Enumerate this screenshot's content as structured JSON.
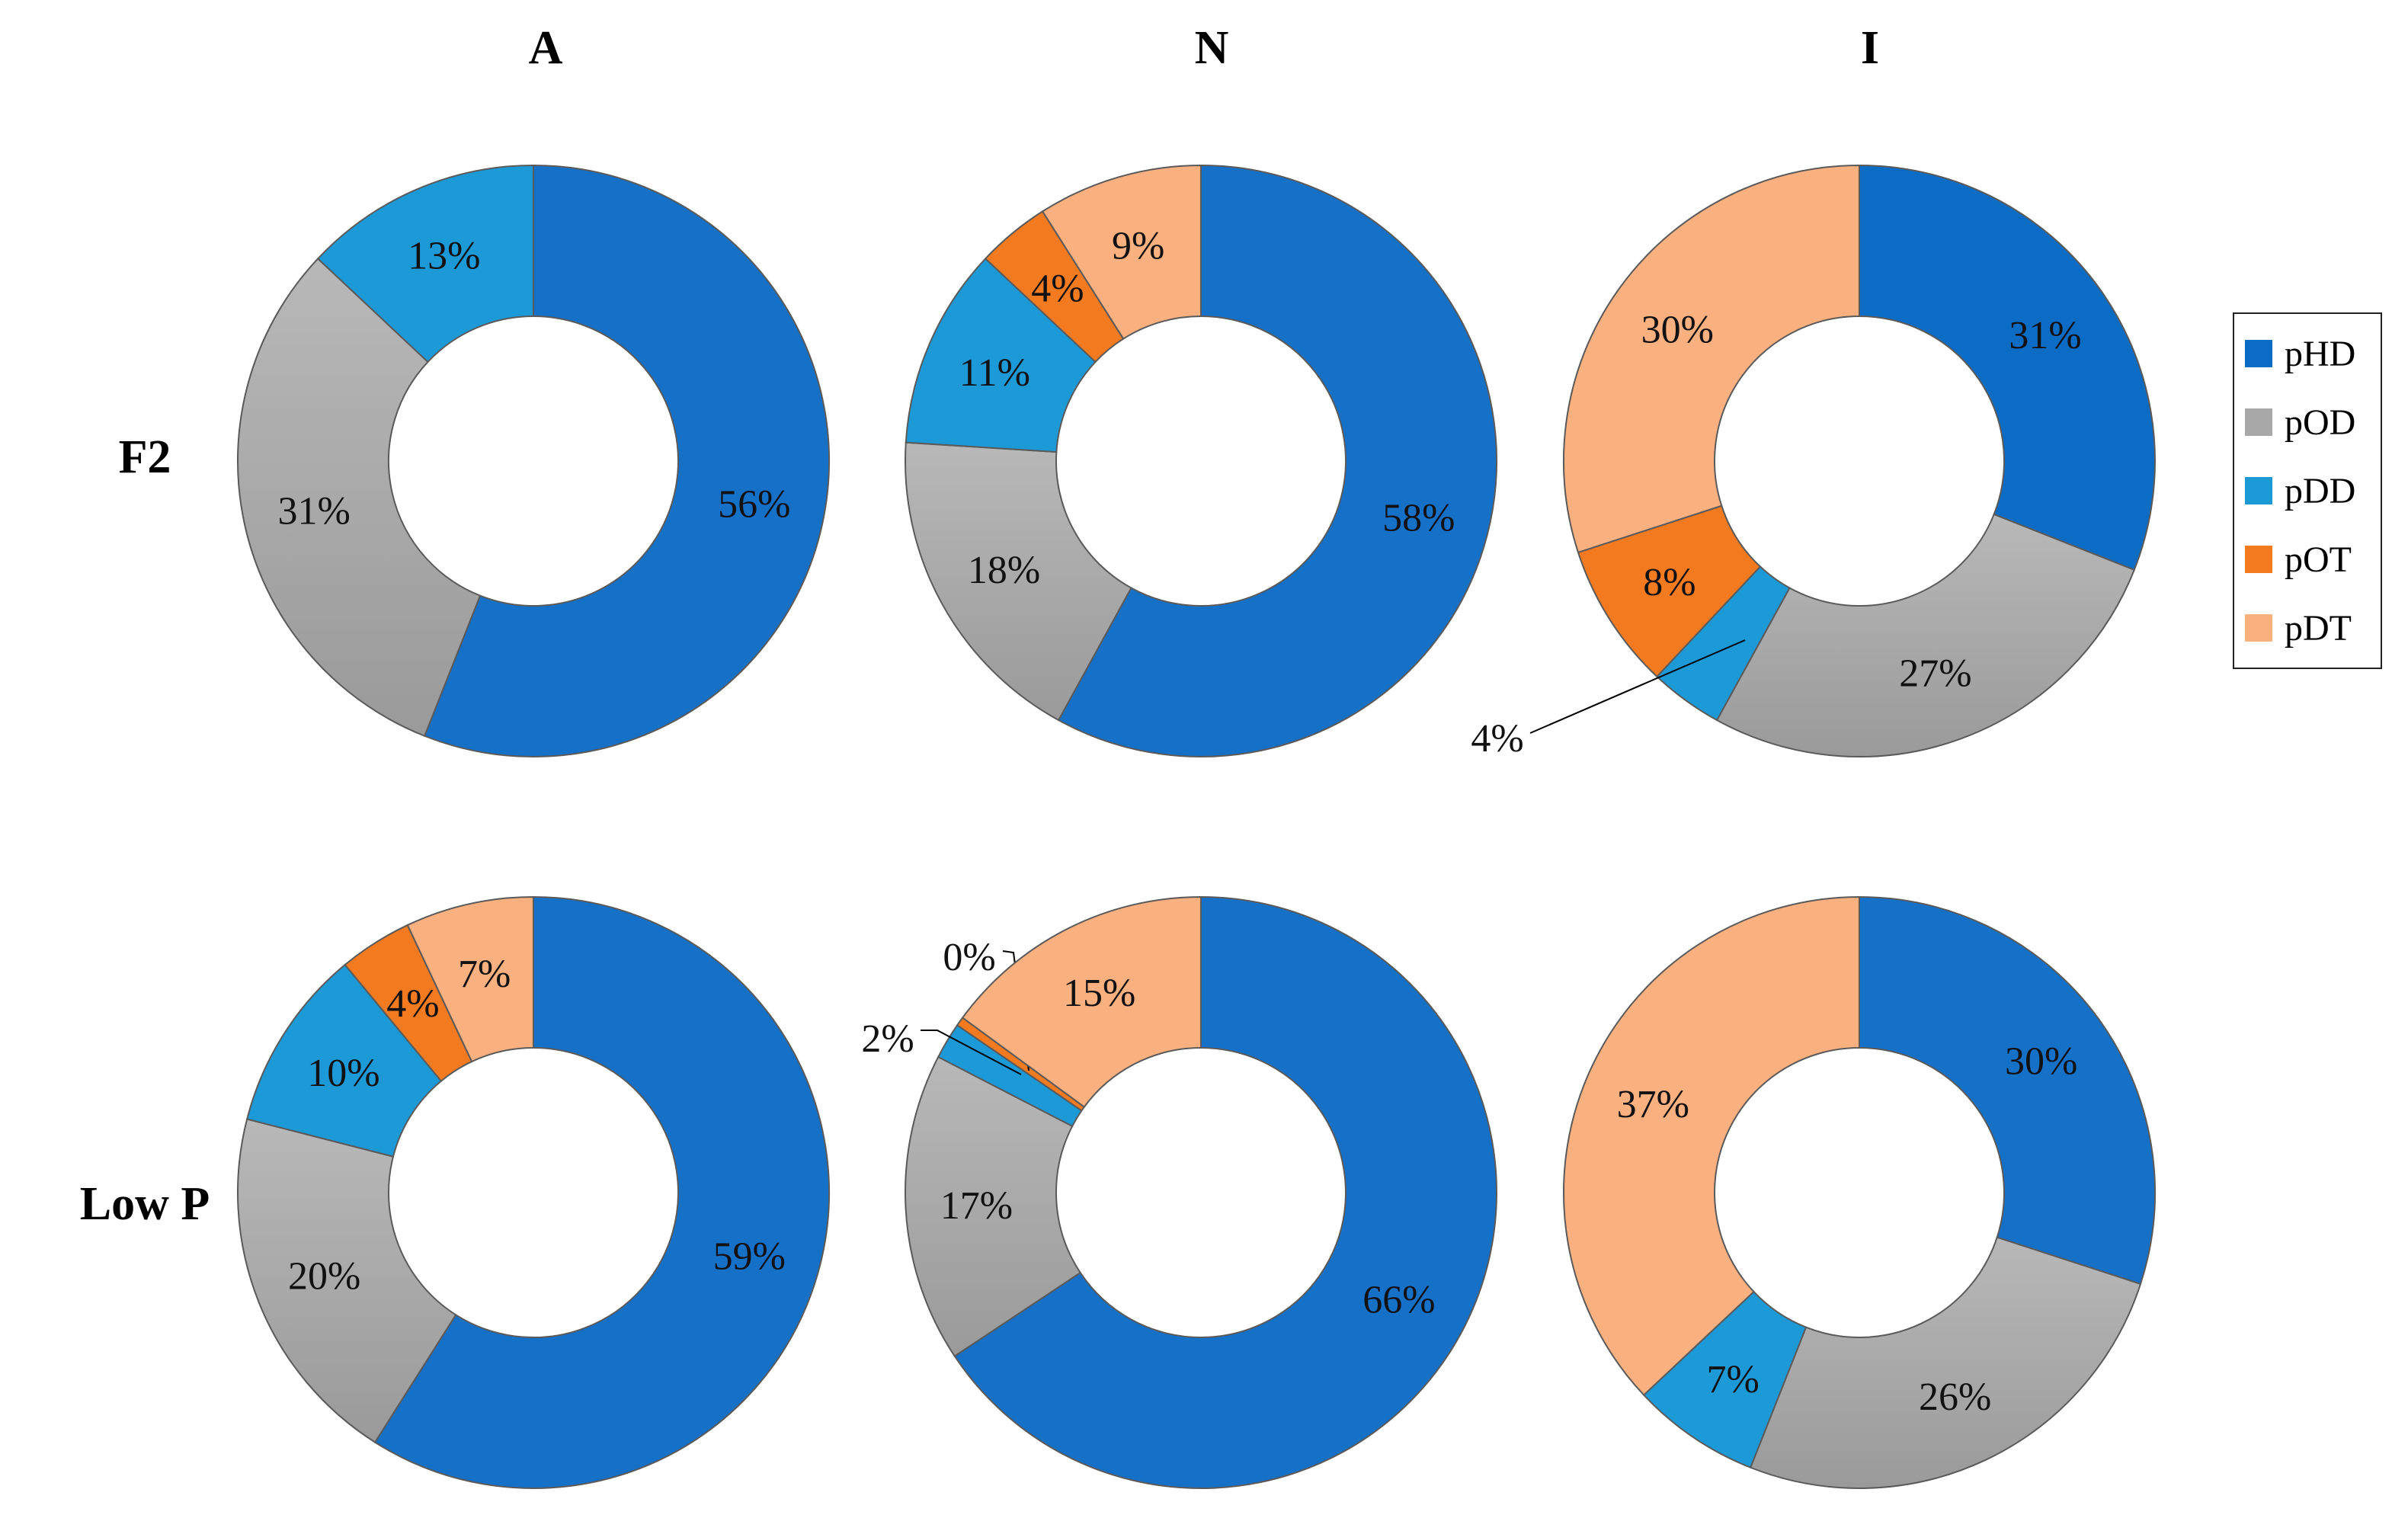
{
  "chart_data": {
    "type": "donut-grid",
    "columns": [
      "A",
      "N",
      "I"
    ],
    "rows": [
      "F2",
      "Low P"
    ],
    "legend": [
      {
        "name": "pHD",
        "color": "#1570c8"
      },
      {
        "name": "pOD",
        "color": "#a8a8a8"
      },
      {
        "name": "pDD",
        "color": "#1c9ad8"
      },
      {
        "name": "pOT",
        "color": "#f47a20"
      },
      {
        "name": "pDT",
        "color": "#fbb080"
      }
    ],
    "charts": [
      {
        "row": "F2",
        "column": "A",
        "values": [
          56,
          31,
          13,
          0,
          0
        ],
        "labels": [
          "56%",
          "31%",
          "13%",
          "",
          ""
        ]
      },
      {
        "row": "F2",
        "column": "N",
        "values": [
          58,
          18,
          11,
          4,
          9
        ],
        "labels": [
          "58%",
          "18%",
          "11%",
          "4%",
          "9%"
        ]
      },
      {
        "row": "F2",
        "column": "I",
        "values": [
          31,
          27,
          4,
          8,
          30
        ],
        "labels": [
          "31%",
          "27%",
          "4%",
          "8%",
          "30%"
        ]
      },
      {
        "row": "Low P",
        "column": "A",
        "values": [
          59,
          20,
          10,
          4,
          7
        ],
        "labels": [
          "59%",
          "20%",
          "10%",
          "4%",
          "7%"
        ]
      },
      {
        "row": "Low P",
        "column": "N",
        "values": [
          66,
          17,
          2,
          0.5,
          15
        ],
        "labels": [
          "66%",
          "17%",
          "2%",
          "0%",
          "15%"
        ]
      },
      {
        "row": "Low P",
        "column": "I",
        "values": [
          30,
          26,
          7,
          0,
          37
        ],
        "labels": [
          "30%",
          "26%",
          "7%",
          "",
          "37%"
        ]
      }
    ]
  }
}
